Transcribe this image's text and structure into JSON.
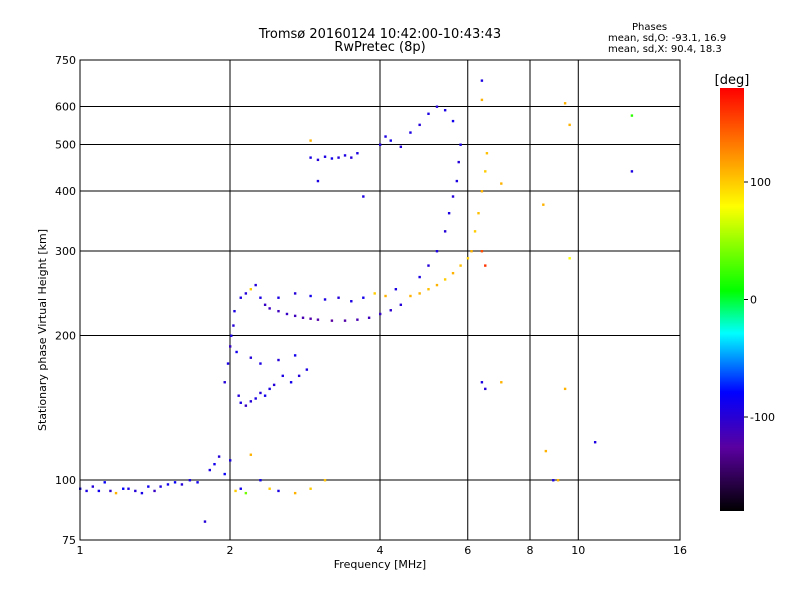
{
  "header": {
    "title": "Tromsø 20160124 10:42:00-10:43:43",
    "subtitle": "RwPretec (8p)",
    "phase_heading": "Phases",
    "phase_o_line": "mean, sd,O: -93.1, 16.9",
    "phase_x_line": "mean, sd,X:  90.4, 18.3"
  },
  "colorbar": {
    "title": "[deg]",
    "ticks": [
      {
        "value": 100,
        "label": "100"
      },
      {
        "value": 0,
        "label": "0"
      },
      {
        "value": -100,
        "label": "-100"
      }
    ],
    "range": [
      -180,
      180
    ]
  },
  "chart_data": {
    "type": "scatter",
    "title": "Tromsø 20160124 10:42:00-10:43:43",
    "subtitle": "RwPretec (8p)",
    "xlabel": "Frequency [MHz]",
    "ylabel": "Stationary phase Virtual Height [km]",
    "x_scale": "log",
    "y_scale": "log",
    "xlim": [
      1,
      16
    ],
    "ylim": [
      75,
      750
    ],
    "x_ticks": [
      {
        "value": 1,
        "label": "1"
      },
      {
        "value": 2,
        "label": "2"
      },
      {
        "value": 4,
        "label": "4"
      },
      {
        "value": 6,
        "label": "6"
      },
      {
        "value": 8,
        "label": "8"
      },
      {
        "value": 10,
        "label": "10"
      },
      {
        "value": 16,
        "label": "16"
      }
    ],
    "y_ticks": [
      {
        "value": 75,
        "label": "75"
      },
      {
        "value": 100,
        "label": "100"
      },
      {
        "value": 200,
        "label": "200"
      },
      {
        "value": 300,
        "label": "300"
      },
      {
        "value": 400,
        "label": "400"
      },
      {
        "value": 500,
        "label": "500"
      },
      {
        "value": 600,
        "label": "600"
      },
      {
        "value": 750,
        "label": "750"
      }
    ],
    "grid_x": [
      2,
      4,
      6,
      8,
      10
    ],
    "grid_y": [
      100,
      200,
      300,
      400,
      500,
      600
    ],
    "grid": true,
    "color_by": "phase_deg",
    "series": [
      {
        "points": [
          {
            "x": 1.0,
            "y": 96,
            "c": -90
          },
          {
            "x": 1.03,
            "y": 95,
            "c": -95
          },
          {
            "x": 1.06,
            "y": 97,
            "c": -100
          },
          {
            "x": 1.09,
            "y": 95,
            "c": -90
          },
          {
            "x": 1.12,
            "y": 99,
            "c": -85
          },
          {
            "x": 1.15,
            "y": 95,
            "c": -105
          },
          {
            "x": 1.18,
            "y": 94,
            "c": 110
          },
          {
            "x": 1.22,
            "y": 96,
            "c": -80
          },
          {
            "x": 1.25,
            "y": 96,
            "c": -95
          },
          {
            "x": 1.29,
            "y": 95,
            "c": -100
          },
          {
            "x": 1.33,
            "y": 94,
            "c": -92
          },
          {
            "x": 1.37,
            "y": 97,
            "c": -88
          },
          {
            "x": 1.41,
            "y": 95,
            "c": -110
          },
          {
            "x": 1.45,
            "y": 97,
            "c": -95
          },
          {
            "x": 1.5,
            "y": 98,
            "c": -90
          },
          {
            "x": 1.55,
            "y": 99,
            "c": -85
          },
          {
            "x": 1.6,
            "y": 98,
            "c": -100
          },
          {
            "x": 1.66,
            "y": 100,
            "c": -95
          },
          {
            "x": 1.72,
            "y": 99,
            "c": -90
          },
          {
            "x": 1.78,
            "y": 82,
            "c": -100
          },
          {
            "x": 1.82,
            "y": 105,
            "c": -95
          },
          {
            "x": 1.86,
            "y": 108,
            "c": -90
          },
          {
            "x": 1.9,
            "y": 112,
            "c": -100
          },
          {
            "x": 1.95,
            "y": 103,
            "c": -85
          },
          {
            "x": 2.0,
            "y": 110,
            "c": -95
          },
          {
            "x": 2.05,
            "y": 95,
            "c": 100
          },
          {
            "x": 2.1,
            "y": 96,
            "c": -90
          },
          {
            "x": 2.15,
            "y": 94,
            "c": 40
          },
          {
            "x": 2.2,
            "y": 113,
            "c": 110
          },
          {
            "x": 2.3,
            "y": 100,
            "c": -90
          },
          {
            "x": 2.4,
            "y": 96,
            "c": 100
          },
          {
            "x": 2.5,
            "y": 95,
            "c": -95
          },
          {
            "x": 2.7,
            "y": 94,
            "c": 110
          },
          {
            "x": 2.9,
            "y": 96,
            "c": 100
          },
          {
            "x": 3.1,
            "y": 100,
            "c": 105
          },
          {
            "x": 1.95,
            "y": 160,
            "c": -100
          },
          {
            "x": 1.98,
            "y": 175,
            "c": -95
          },
          {
            "x": 2.0,
            "y": 190,
            "c": -110
          },
          {
            "x": 2.01,
            "y": 200,
            "c": -95
          },
          {
            "x": 2.03,
            "y": 210,
            "c": -100
          },
          {
            "x": 2.04,
            "y": 225,
            "c": -95
          },
          {
            "x": 2.06,
            "y": 185,
            "c": -90
          },
          {
            "x": 2.08,
            "y": 150,
            "c": -100
          },
          {
            "x": 2.1,
            "y": 145,
            "c": -95
          },
          {
            "x": 2.15,
            "y": 143,
            "c": -110
          },
          {
            "x": 2.2,
            "y": 146,
            "c": -100
          },
          {
            "x": 2.25,
            "y": 148,
            "c": -95
          },
          {
            "x": 2.3,
            "y": 152,
            "c": -100
          },
          {
            "x": 2.35,
            "y": 150,
            "c": -90
          },
          {
            "x": 2.4,
            "y": 155,
            "c": -95
          },
          {
            "x": 2.45,
            "y": 158,
            "c": -100
          },
          {
            "x": 2.55,
            "y": 165,
            "c": -95
          },
          {
            "x": 2.65,
            "y": 160,
            "c": -90
          },
          {
            "x": 2.75,
            "y": 165,
            "c": -100
          },
          {
            "x": 2.85,
            "y": 170,
            "c": -95
          },
          {
            "x": 2.2,
            "y": 180,
            "c": -100
          },
          {
            "x": 2.3,
            "y": 175,
            "c": -95
          },
          {
            "x": 2.5,
            "y": 178,
            "c": -100
          },
          {
            "x": 2.7,
            "y": 182,
            "c": -90
          },
          {
            "x": 2.1,
            "y": 240,
            "c": -95
          },
          {
            "x": 2.15,
            "y": 245,
            "c": -100
          },
          {
            "x": 2.2,
            "y": 250,
            "c": 100
          },
          {
            "x": 2.25,
            "y": 255,
            "c": -100
          },
          {
            "x": 2.3,
            "y": 240,
            "c": -95
          },
          {
            "x": 2.35,
            "y": 232,
            "c": -110
          },
          {
            "x": 2.4,
            "y": 228,
            "c": -115
          },
          {
            "x": 2.5,
            "y": 225,
            "c": -115
          },
          {
            "x": 2.6,
            "y": 222,
            "c": -110
          },
          {
            "x": 2.7,
            "y": 220,
            "c": -115
          },
          {
            "x": 2.8,
            "y": 218,
            "c": -120
          },
          {
            "x": 2.9,
            "y": 217,
            "c": -125
          },
          {
            "x": 3.0,
            "y": 216,
            "c": -125
          },
          {
            "x": 3.2,
            "y": 215,
            "c": -130
          },
          {
            "x": 3.4,
            "y": 215,
            "c": -125
          },
          {
            "x": 3.6,
            "y": 216,
            "c": -120
          },
          {
            "x": 3.8,
            "y": 218,
            "c": -115
          },
          {
            "x": 4.0,
            "y": 222,
            "c": -110
          },
          {
            "x": 4.2,
            "y": 226,
            "c": -105
          },
          {
            "x": 4.4,
            "y": 232,
            "c": -100
          },
          {
            "x": 2.5,
            "y": 240,
            "c": -95
          },
          {
            "x": 2.7,
            "y": 245,
            "c": -100
          },
          {
            "x": 2.9,
            "y": 242,
            "c": -90
          },
          {
            "x": 3.1,
            "y": 238,
            "c": -95
          },
          {
            "x": 3.3,
            "y": 240,
            "c": -100
          },
          {
            "x": 3.5,
            "y": 236,
            "c": -95
          },
          {
            "x": 3.7,
            "y": 240,
            "c": -90
          },
          {
            "x": 3.9,
            "y": 245,
            "c": 100
          },
          {
            "x": 4.1,
            "y": 242,
            "c": 110
          },
          {
            "x": 4.3,
            "y": 250,
            "c": -95
          },
          {
            "x": 4.6,
            "y": 242,
            "c": 110
          },
          {
            "x": 4.8,
            "y": 245,
            "c": 110
          },
          {
            "x": 5.0,
            "y": 250,
            "c": 105
          },
          {
            "x": 5.2,
            "y": 255,
            "c": 110
          },
          {
            "x": 5.4,
            "y": 262,
            "c": 100
          },
          {
            "x": 5.6,
            "y": 270,
            "c": 110
          },
          {
            "x": 5.8,
            "y": 280,
            "c": 105
          },
          {
            "x": 6.0,
            "y": 290,
            "c": 100
          },
          {
            "x": 4.8,
            "y": 265,
            "c": -95
          },
          {
            "x": 5.0,
            "y": 280,
            "c": -100
          },
          {
            "x": 5.2,
            "y": 300,
            "c": -95
          },
          {
            "x": 5.4,
            "y": 330,
            "c": -100
          },
          {
            "x": 5.5,
            "y": 360,
            "c": -95
          },
          {
            "x": 5.6,
            "y": 390,
            "c": -100
          },
          {
            "x": 5.7,
            "y": 420,
            "c": -95
          },
          {
            "x": 5.75,
            "y": 460,
            "c": -100
          },
          {
            "x": 5.8,
            "y": 500,
            "c": -95
          },
          {
            "x": 6.1,
            "y": 300,
            "c": 110
          },
          {
            "x": 6.2,
            "y": 330,
            "c": 100
          },
          {
            "x": 6.3,
            "y": 360,
            "c": 105
          },
          {
            "x": 6.4,
            "y": 400,
            "c": 110
          },
          {
            "x": 6.5,
            "y": 440,
            "c": 100
          },
          {
            "x": 6.55,
            "y": 480,
            "c": 105
          },
          {
            "x": 6.4,
            "y": 300,
            "c": 150
          },
          {
            "x": 6.5,
            "y": 280,
            "c": 160
          },
          {
            "x": 2.9,
            "y": 470,
            "c": -95
          },
          {
            "x": 3.0,
            "y": 465,
            "c": -100
          },
          {
            "x": 3.1,
            "y": 472,
            "c": -95
          },
          {
            "x": 3.2,
            "y": 468,
            "c": -90
          },
          {
            "x": 3.3,
            "y": 470,
            "c": -100
          },
          {
            "x": 3.4,
            "y": 475,
            "c": -95
          },
          {
            "x": 3.5,
            "y": 470,
            "c": -100
          },
          {
            "x": 3.6,
            "y": 480,
            "c": -95
          },
          {
            "x": 3.0,
            "y": 420,
            "c": -95
          },
          {
            "x": 2.9,
            "y": 510,
            "c": 110
          },
          {
            "x": 3.7,
            "y": 390,
            "c": -95
          },
          {
            "x": 4.0,
            "y": 500,
            "c": -100
          },
          {
            "x": 4.1,
            "y": 520,
            "c": -95
          },
          {
            "x": 4.2,
            "y": 510,
            "c": -90
          },
          {
            "x": 4.4,
            "y": 495,
            "c": -100
          },
          {
            "x": 4.6,
            "y": 530,
            "c": -95
          },
          {
            "x": 4.8,
            "y": 550,
            "c": -100
          },
          {
            "x": 5.0,
            "y": 580,
            "c": -95
          },
          {
            "x": 5.2,
            "y": 600,
            "c": -100
          },
          {
            "x": 5.4,
            "y": 590,
            "c": -95
          },
          {
            "x": 5.6,
            "y": 560,
            "c": -90
          },
          {
            "x": 6.4,
            "y": 680,
            "c": -95
          },
          {
            "x": 6.4,
            "y": 620,
            "c": 110
          },
          {
            "x": 6.4,
            "y": 160,
            "c": -95
          },
          {
            "x": 6.5,
            "y": 155,
            "c": -100
          },
          {
            "x": 7.0,
            "y": 415,
            "c": 110
          },
          {
            "x": 7.0,
            "y": 160,
            "c": 110
          },
          {
            "x": 8.5,
            "y": 375,
            "c": 110
          },
          {
            "x": 9.4,
            "y": 610,
            "c": 110
          },
          {
            "x": 9.6,
            "y": 550,
            "c": 110
          },
          {
            "x": 9.6,
            "y": 290,
            "c": 80
          },
          {
            "x": 9.4,
            "y": 155,
            "c": 110
          },
          {
            "x": 8.6,
            "y": 115,
            "c": 110
          },
          {
            "x": 8.9,
            "y": 100,
            "c": -95
          },
          {
            "x": 9.1,
            "y": 100,
            "c": 110
          },
          {
            "x": 10.8,
            "y": 120,
            "c": -95
          },
          {
            "x": 12.8,
            "y": 440,
            "c": -95
          },
          {
            "x": 12.8,
            "y": 575,
            "c": 20
          }
        ]
      }
    ]
  }
}
